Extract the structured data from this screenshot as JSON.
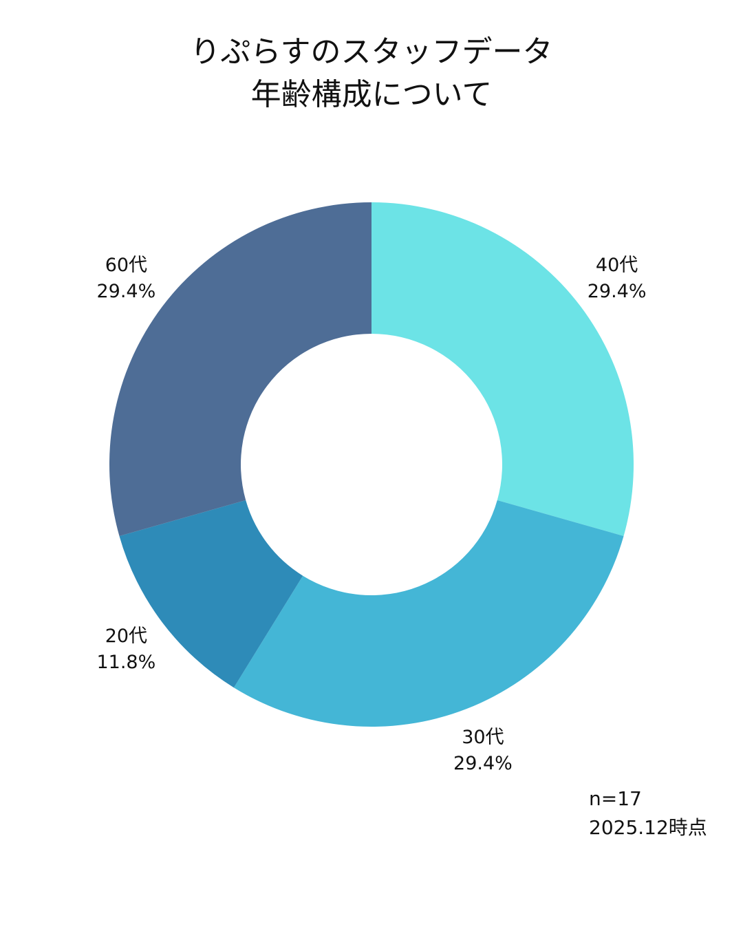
{
  "chart_data": {
    "type": "donut",
    "title": [
      "りぷらすのスタッフデータ",
      "年齢構成について"
    ],
    "categories": [
      "40代",
      "30代",
      "20代",
      "60代"
    ],
    "values": [
      29.4,
      29.4,
      11.8,
      29.4
    ],
    "value_labels": [
      "29.4%",
      "29.4%",
      "11.8%",
      "29.4%"
    ],
    "colors": [
      "#6ce3e6",
      "#44b6d6",
      "#2e8bb8",
      "#4e6d96"
    ],
    "annotations": [
      "n=17",
      "2025.12時点"
    ]
  }
}
